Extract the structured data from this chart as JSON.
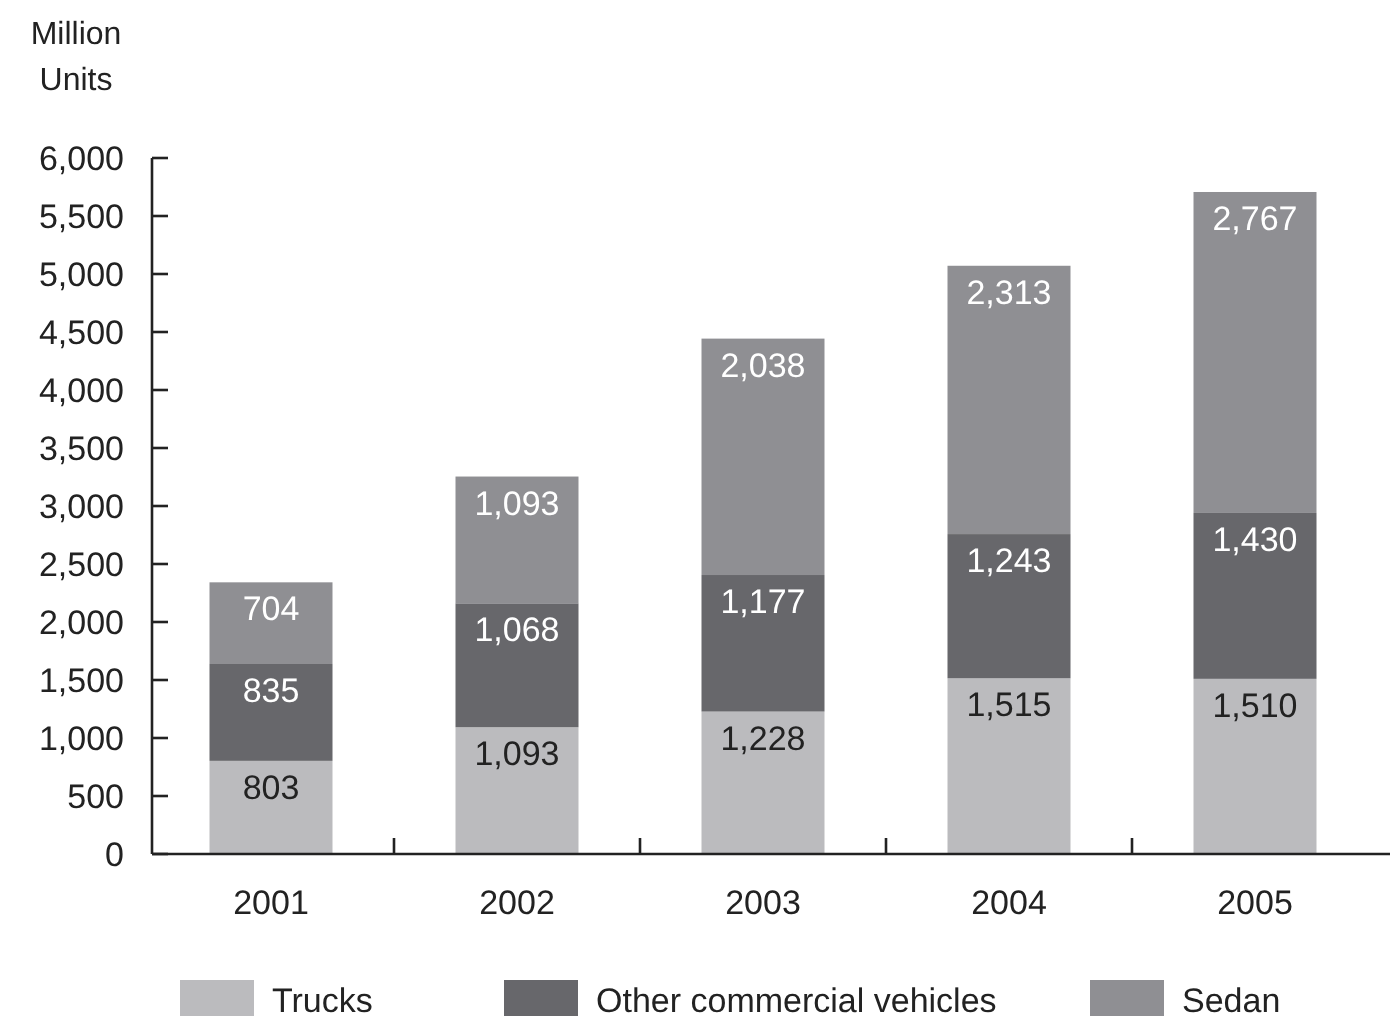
{
  "chart_data": {
    "type": "bar",
    "stacked": true,
    "ylabel": "Million\nUnits",
    "categories": [
      "2001",
      "2002",
      "2003",
      "2004",
      "2005"
    ],
    "series": [
      {
        "name": "Trucks",
        "color": "#bbbbbe",
        "values": [
          803,
          1093,
          1228,
          1515,
          1510
        ],
        "value_labels": [
          "803",
          "1,093",
          "1,228",
          "1,515",
          "1,510"
        ]
      },
      {
        "name": "Other commercial vehicles",
        "color": "#67676b",
        "values": [
          835,
          1068,
          1177,
          1243,
          1430
        ],
        "value_labels": [
          "835",
          "1,068",
          "1,177",
          "1,243",
          "1,430"
        ]
      },
      {
        "name": "Sedan",
        "color": "#8f8f93",
        "values": [
          704,
          1093,
          2038,
          2313,
          2767
        ],
        "value_labels": [
          "704",
          "1,093",
          "2,038",
          "2,313",
          "2,767"
        ]
      }
    ],
    "ylim": [
      0,
      6000
    ],
    "yticks": [
      0,
      500,
      {
        "value": 1000,
        "label": "1,000"
      },
      {
        "value": 1500,
        "label": "1,500"
      },
      {
        "value": 2000,
        "label": "2,000"
      },
      {
        "value": 2500,
        "label": "2,500"
      },
      {
        "value": 3000,
        "label": "3,000"
      },
      {
        "value": 3500,
        "label": "3,500"
      },
      {
        "value": 4000,
        "label": "4,000"
      },
      {
        "value": 4500,
        "label": "4,500"
      },
      {
        "value": 5000,
        "label": "5,000"
      },
      {
        "value": 5500,
        "label": "5,500"
      },
      {
        "value": 6000,
        "label": "6,000"
      }
    ],
    "legend": "bottom",
    "grid": false
  }
}
